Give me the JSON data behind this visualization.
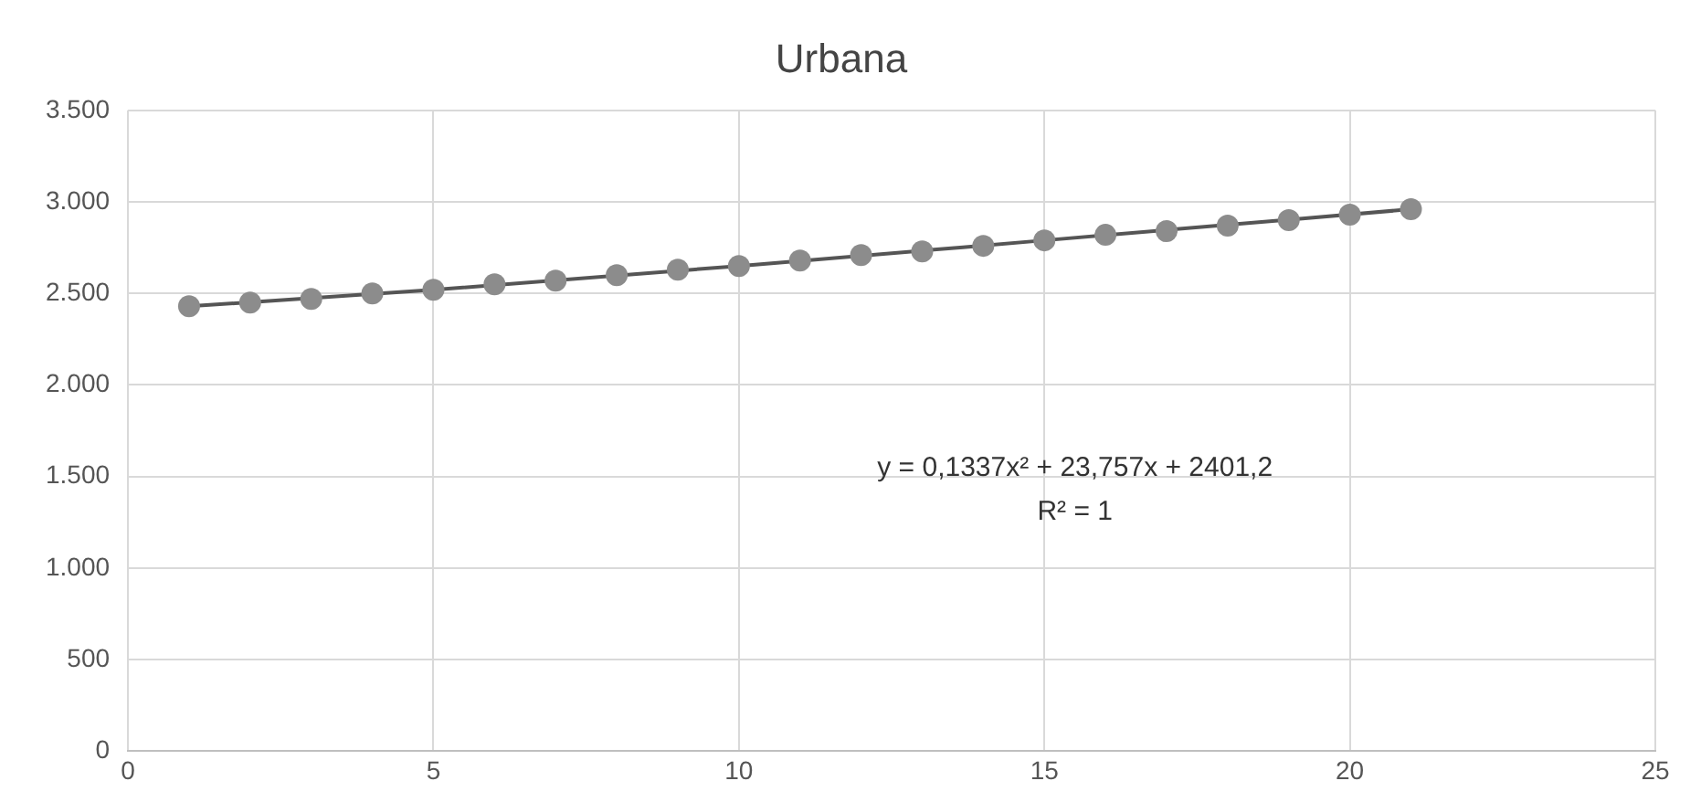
{
  "chart_data": {
    "type": "scatter",
    "title": "Urbana",
    "xlim": [
      0,
      25
    ],
    "xticks": [
      0,
      5,
      10,
      15,
      20,
      25
    ],
    "ylim": [
      0,
      3500
    ],
    "yticks": [
      0,
      500,
      {
        "value": 1000,
        "label": "1.000"
      },
      {
        "value": 1500,
        "label": "1.500"
      },
      {
        "value": 2000,
        "label": "2.000"
      },
      {
        "value": 2500,
        "label": "2.500"
      },
      {
        "value": 3000,
        "label": "3.000"
      },
      {
        "value": 3500,
        "label": "3.500"
      }
    ],
    "grid": true,
    "legend": false,
    "marker": "circle",
    "series": [
      {
        "color": "#8c8c8c",
        "x": [
          1,
          2,
          3,
          4,
          5,
          6,
          7,
          8,
          9,
          10,
          11,
          12,
          13,
          14,
          15,
          16,
          17,
          18,
          19,
          20,
          21
        ],
        "values": [
          2430,
          2450,
          2470,
          2500,
          2520,
          2550,
          2570,
          2600,
          2630,
          2650,
          2680,
          2710,
          2730,
          2760,
          2790,
          2820,
          2840,
          2870,
          2900,
          2930,
          2960
        ]
      },
      {
        "type": "line",
        "color": "#555555",
        "marker": "none",
        "x": [
          1,
          5,
          10,
          15,
          21
        ],
        "values": [
          2430,
          2520,
          2650,
          2790,
          2960
        ]
      }
    ],
    "annotations": [
      "y = 0,1337x² + 23,757x + 2401,2",
      "R² = 1"
    ]
  }
}
